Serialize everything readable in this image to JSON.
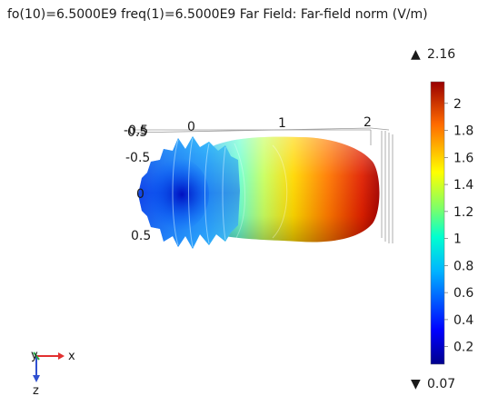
{
  "title": "fo(10)=6.5000E9 freq(1)=6.5000E9   Far Field: Far-field norm (V/m)",
  "chart_data": {
    "type": "3d-surface",
    "title": "fo(10)=6.5000E9 freq(1)=6.5000E9   Far Field: Far-field norm (V/m)",
    "x_ticks": [
      "0",
      "1",
      "2"
    ],
    "y_ticks": [
      "-0.5",
      "0",
      "0.5"
    ],
    "z_ticks": [
      "0.5"
    ],
    "colorbar": {
      "max_label": "2.16",
      "min_label": "0.07",
      "max_marker": "▲",
      "min_marker": "▼",
      "ticks": [
        "2",
        "1.8",
        "1.6",
        "1.4",
        "1.2",
        "1",
        "0.8",
        "0.6",
        "0.4",
        "0.2"
      ],
      "tick_values": [
        2,
        1.8,
        1.6,
        1.4,
        1.2,
        1,
        0.8,
        0.6,
        0.4,
        0.2
      ],
      "min": 0.07,
      "max": 2.16,
      "colormap": "rainbow"
    },
    "triad": {
      "y_label": "y",
      "x_label": "x",
      "z_label": "z"
    },
    "colors": {
      "x_axis": "#e23030",
      "y_axis": "#2aa84a",
      "z_axis": "#3050d0"
    }
  }
}
